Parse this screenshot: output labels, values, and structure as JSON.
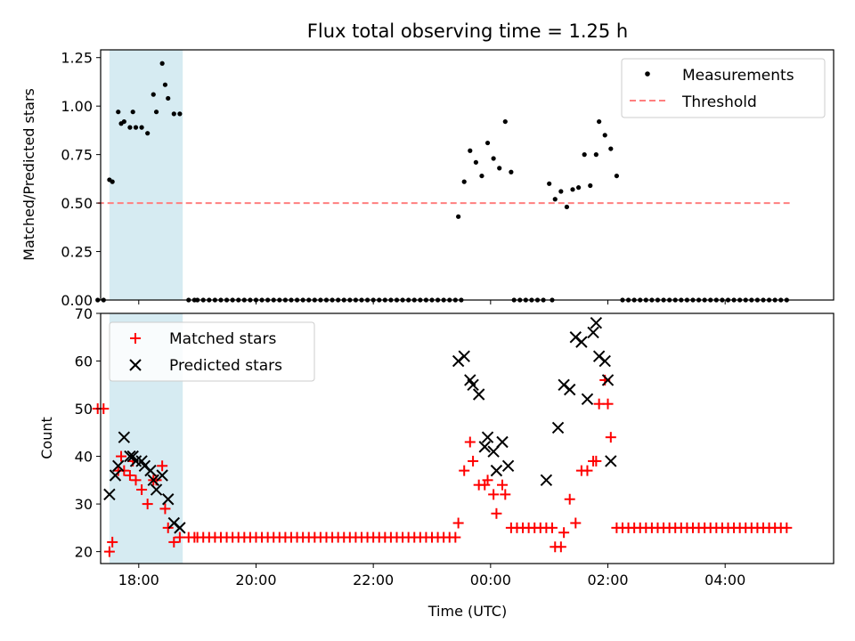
{
  "chart_data": [
    {
      "type": "scatter",
      "title": "Flux total observing time = 1.25 h",
      "xlabel": "",
      "ylabel": "Matched/Predicted stars",
      "xlim": [
        -6.65,
        5.85
      ],
      "ylim": [
        0,
        1.29
      ],
      "yticks": [
        0.0,
        0.25,
        0.5,
        0.75,
        1.0,
        1.25
      ],
      "ytick_labels": [
        "0.00",
        "0.25",
        "0.50",
        "0.75",
        "1.00",
        "1.25"
      ],
      "legend_position": "top-right",
      "shaded_x": [
        -6.5,
        -5.25
      ],
      "shade_color": "#add8e6",
      "series": [
        {
          "name": "Measurements",
          "marker": "dot",
          "color": "#000000",
          "x": [
            -6.7,
            -6.6,
            -6.5,
            -6.45,
            -6.35,
            -6.3,
            -6.25,
            -6.15,
            -6.1,
            -6.05,
            -5.95,
            -5.85,
            -5.75,
            -5.7,
            -5.6,
            -5.55,
            -5.5,
            -5.4,
            -5.3,
            -5.15,
            -5.05,
            -5.0,
            -4.9,
            -4.8,
            -4.7,
            -4.6,
            -4.5,
            -4.4,
            -4.3,
            -4.2,
            -4.1,
            -4.0,
            -3.9,
            -3.8,
            -3.7,
            -3.6,
            -3.5,
            -3.4,
            -3.3,
            -3.2,
            -3.1,
            -3.0,
            -2.9,
            -2.8,
            -2.7,
            -2.6,
            -2.5,
            -2.4,
            -2.3,
            -2.2,
            -2.1,
            -2.0,
            -1.9,
            -1.8,
            -1.7,
            -1.6,
            -1.5,
            -1.4,
            -1.3,
            -1.2,
            -1.1,
            -1.0,
            -0.9,
            -0.8,
            -0.7,
            -0.6,
            -0.5,
            -0.55,
            -0.45,
            -0.35,
            -0.25,
            -0.15,
            -0.05,
            0.05,
            0.15,
            0.25,
            0.35,
            0.4,
            0.5,
            0.6,
            0.7,
            0.8,
            0.9,
            1.0,
            1.05,
            1.1,
            1.2,
            1.3,
            1.4,
            1.5,
            1.6,
            1.7,
            1.8,
            1.85,
            1.95,
            2.05,
            2.15,
            2.25,
            2.35,
            2.45,
            2.55,
            2.65,
            2.75,
            2.85,
            2.95,
            3.05,
            3.15,
            3.25,
            3.35,
            3.45,
            3.55,
            3.65,
            3.75,
            3.85,
            3.95,
            4.05,
            4.15,
            4.25,
            4.35,
            4.45,
            4.55,
            4.65,
            4.75,
            4.85,
            4.95,
            5.05
          ],
          "y": [
            0,
            0,
            0.62,
            0.61,
            0.97,
            0.91,
            0.92,
            0.89,
            0.97,
            0.89,
            0.89,
            0.86,
            1.06,
            0.97,
            1.22,
            1.11,
            1.04,
            0.96,
            0.96,
            0,
            0,
            0,
            0,
            0,
            0,
            0,
            0,
            0,
            0,
            0,
            0,
            0,
            0,
            0,
            0,
            0,
            0,
            0,
            0,
            0,
            0,
            0,
            0,
            0,
            0,
            0,
            0,
            0,
            0,
            0,
            0,
            0,
            0,
            0,
            0,
            0,
            0,
            0,
            0,
            0,
            0,
            0,
            0,
            0,
            0,
            0,
            0,
            0.43,
            0.61,
            0.77,
            0.71,
            0.64,
            0.81,
            0.73,
            0.68,
            0.92,
            0.66,
            0,
            0,
            0,
            0,
            0,
            0,
            0.6,
            0,
            0.52,
            0.56,
            0.48,
            0.57,
            0.58,
            0.75,
            0.59,
            0.75,
            0.92,
            0.85,
            0.78,
            0.64,
            0,
            0,
            0,
            0,
            0,
            0,
            0,
            0,
            0,
            0,
            0,
            0,
            0,
            0,
            0,
            0,
            0,
            0,
            0,
            0,
            0,
            0,
            0,
            0,
            0,
            0,
            0,
            0,
            0
          ]
        },
        {
          "name": "Threshold",
          "marker": "dashed-line",
          "color": "#ff7f7f",
          "x": [
            -6.7,
            5.1
          ],
          "y": [
            0.5,
            0.5
          ]
        }
      ]
    },
    {
      "type": "scatter",
      "title": "",
      "xlabel": "Time (UTC)",
      "ylabel": "Count",
      "xlim": [
        -6.65,
        5.85
      ],
      "ylim": [
        17.5,
        70
      ],
      "yticks": [
        20,
        30,
        40,
        50,
        60,
        70
      ],
      "ytick_labels": [
        "20",
        "30",
        "40",
        "50",
        "60",
        "70"
      ],
      "xticks": [
        -6,
        -4,
        -2,
        0,
        2,
        4
      ],
      "xtick_labels": [
        "18:00",
        "20:00",
        "22:00",
        "00:00",
        "02:00",
        "04:00"
      ],
      "legend_position": "top-left",
      "shaded_x": [
        -6.5,
        -5.25
      ],
      "shade_color": "#add8e6",
      "series": [
        {
          "name": "Matched stars",
          "marker": "plus",
          "color": "#ff0000",
          "x": [
            -6.7,
            -6.6,
            -6.5,
            -6.45,
            -6.35,
            -6.3,
            -6.25,
            -6.15,
            -6.1,
            -6.05,
            -5.95,
            -5.85,
            -5.75,
            -5.7,
            -5.6,
            -5.55,
            -5.5,
            -5.4,
            -5.3,
            -5.15,
            -5.05,
            -5.0,
            -4.9,
            -4.8,
            -4.7,
            -4.6,
            -4.5,
            -4.4,
            -4.3,
            -4.2,
            -4.1,
            -4.0,
            -3.9,
            -3.8,
            -3.7,
            -3.6,
            -3.5,
            -3.4,
            -3.3,
            -3.2,
            -3.1,
            -3.0,
            -2.9,
            -2.8,
            -2.7,
            -2.6,
            -2.5,
            -2.4,
            -2.3,
            -2.2,
            -2.1,
            -2.0,
            -1.9,
            -1.8,
            -1.7,
            -1.6,
            -1.5,
            -1.4,
            -1.3,
            -1.2,
            -1.1,
            -1.0,
            -0.9,
            -0.8,
            -0.7,
            -0.6,
            -0.55,
            -0.45,
            -0.35,
            -0.3,
            -0.2,
            -0.1,
            -0.05,
            0.05,
            0.1,
            0.2,
            0.25,
            0.35,
            0.45,
            0.55,
            0.65,
            0.75,
            0.85,
            0.95,
            1.05,
            1.1,
            1.2,
            1.25,
            1.35,
            1.45,
            1.55,
            1.65,
            1.75,
            1.8,
            1.85,
            1.95,
            2.0,
            2.05,
            2.15,
            2.25,
            2.35,
            2.45,
            2.55,
            2.65,
            2.75,
            2.85,
            2.95,
            3.05,
            3.15,
            3.25,
            3.35,
            3.45,
            3.55,
            3.65,
            3.75,
            3.85,
            3.95,
            4.05,
            4.15,
            4.25,
            4.35,
            4.45,
            4.55,
            4.65,
            4.75,
            4.85,
            4.95,
            5.05
          ],
          "y": [
            50,
            50,
            20,
            22,
            37,
            40,
            37,
            36,
            39,
            35,
            33,
            30,
            35,
            35,
            38,
            29,
            25,
            22,
            23,
            23,
            23,
            23,
            23,
            23,
            23,
            23,
            23,
            23,
            23,
            23,
            23,
            23,
            23,
            23,
            23,
            23,
            23,
            23,
            23,
            23,
            23,
            23,
            23,
            23,
            23,
            23,
            23,
            23,
            23,
            23,
            23,
            23,
            23,
            23,
            23,
            23,
            23,
            23,
            23,
            23,
            23,
            23,
            23,
            23,
            23,
            23,
            26,
            37,
            43,
            39,
            34,
            34,
            35,
            32,
            28,
            34,
            32,
            25,
            25,
            25,
            25,
            25,
            25,
            25,
            25,
            21,
            21,
            24,
            31,
            26,
            37,
            37,
            39,
            39,
            51,
            56,
            51,
            44,
            25,
            25,
            25,
            25,
            25,
            25,
            25,
            25,
            25,
            25,
            25,
            25,
            25,
            25,
            25,
            25,
            25,
            25,
            25,
            25,
            25,
            25,
            25,
            25,
            25,
            25,
            25,
            25,
            25,
            25
          ]
        },
        {
          "name": "Predicted stars",
          "marker": "x",
          "color": "#000000",
          "x": [
            -6.5,
            -6.4,
            -6.35,
            -6.25,
            -6.15,
            -6.1,
            -6.05,
            -5.95,
            -5.9,
            -5.8,
            -5.75,
            -5.7,
            -5.6,
            -5.5,
            -5.4,
            -5.3,
            -0.55,
            -0.45,
            -0.35,
            -0.3,
            -0.2,
            -0.1,
            -0.05,
            0.05,
            0.1,
            0.2,
            0.3,
            0.95,
            1.15,
            1.25,
            1.35,
            1.45,
            1.55,
            1.65,
            1.75,
            1.8,
            1.85,
            1.95,
            2.0,
            2.05
          ],
          "y": [
            32,
            36,
            38,
            44,
            40,
            40,
            39,
            39,
            38,
            37,
            35,
            33,
            36,
            31,
            26,
            25,
            60,
            61,
            56,
            55,
            53,
            42,
            44,
            41,
            37,
            43,
            38,
            35,
            46,
            55,
            54,
            65,
            64,
            52,
            66,
            68,
            61,
            60,
            56,
            39
          ]
        }
      ]
    }
  ]
}
